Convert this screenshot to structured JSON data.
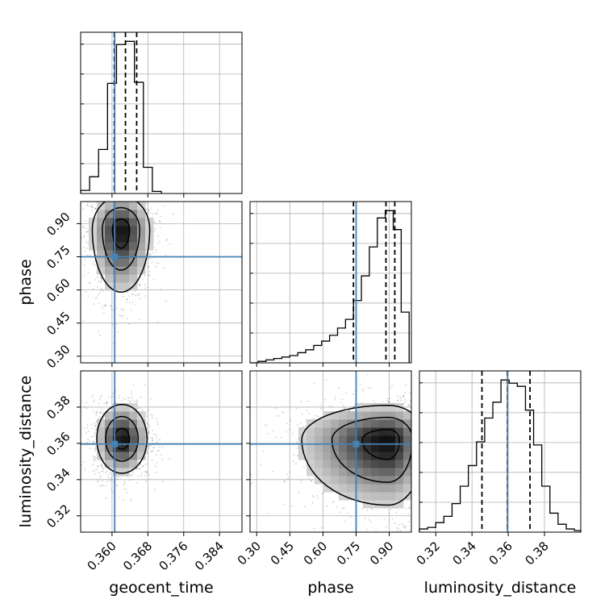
{
  "chart_data": {
    "type": "corner",
    "parameters": [
      {
        "key": "geocent_time",
        "label": "geocent_time",
        "range": [
          0.353,
          0.389
        ],
        "ticks": [
          "0.360",
          "0.368",
          "0.376",
          "0.384"
        ],
        "tick_values": [
          0.36,
          0.368,
          0.376,
          0.384
        ]
      },
      {
        "key": "phase",
        "label": "phase",
        "range": [
          0.27,
          1.0
        ],
        "ticks": [
          "0.30",
          "0.45",
          "0.60",
          "0.75",
          "0.90"
        ],
        "tick_values": [
          0.3,
          0.45,
          0.6,
          0.75,
          0.9
        ]
      },
      {
        "key": "luminosity_distance",
        "label": "luminosity_distance",
        "range": [
          0.311,
          0.4
        ],
        "ticks": [
          "0.32",
          "0.34",
          "0.36",
          "0.38"
        ],
        "tick_values": [
          0.32,
          0.34,
          0.36,
          0.38
        ]
      }
    ],
    "truths": {
      "geocent_time": 0.3606,
      "phase": 0.75,
      "luminosity_distance": 0.3596
    },
    "colors": {
      "truth": "#4682b4",
      "hist": "#000000",
      "grid": "#b0b0b0"
    },
    "grid": true,
    "histograms": [
      {
        "param": "geocent_time",
        "edges": [
          0.353,
          0.355,
          0.357,
          0.359,
          0.361,
          0.363,
          0.365,
          0.367,
          0.369,
          0.371
        ],
        "counts": [
          0.03,
          0.16,
          0.42,
          1.05,
          1.42,
          1.45,
          1.06,
          0.25,
          0.02
        ],
        "quantiles": [
          0.3605,
          0.363,
          0.3655
        ]
      },
      {
        "param": "phase",
        "edges": [
          0.27,
          0.306,
          0.342,
          0.378,
          0.414,
          0.45,
          0.486,
          0.522,
          0.558,
          0.594,
          0.63,
          0.666,
          0.702,
          0.738,
          0.774,
          0.81,
          0.846,
          0.882,
          0.918,
          0.954,
          0.99
        ],
        "counts": [
          0.0,
          0.01,
          0.02,
          0.03,
          0.04,
          0.05,
          0.07,
          0.09,
          0.12,
          0.15,
          0.19,
          0.24,
          0.3,
          0.43,
          0.6,
          0.8,
          1.0,
          1.05,
          0.92,
          0.35
        ],
        "quantiles": [
          0.738,
          0.885,
          0.925
        ]
      },
      {
        "param": "luminosity_distance",
        "edges": [
          0.311,
          0.3155,
          0.32,
          0.3245,
          0.329,
          0.3335,
          0.338,
          0.3425,
          0.347,
          0.3515,
          0.356,
          0.3605,
          0.365,
          0.3695,
          0.374,
          0.3785,
          0.383,
          0.3875,
          0.392,
          0.3965,
          0.401
        ],
        "counts": [
          0.02,
          0.03,
          0.06,
          0.1,
          0.18,
          0.29,
          0.42,
          0.57,
          0.72,
          0.82,
          0.96,
          0.94,
          0.92,
          0.77,
          0.55,
          0.29,
          0.12,
          0.05,
          0.02,
          0.01
        ],
        "quantiles": [
          0.3455,
          0.3595,
          0.372
        ]
      }
    ],
    "joint": [
      {
        "x": "geocent_time",
        "y": "phase",
        "center": [
          0.362,
          0.875
        ],
        "spread": [
          0.0032,
          0.075
        ],
        "skew": "tail-low"
      },
      {
        "x": "geocent_time",
        "y": "luminosity_distance",
        "center": [
          0.3622,
          0.3625
        ],
        "spread": [
          0.0028,
          0.0095
        ],
        "skew": "none"
      },
      {
        "x": "phase",
        "y": "luminosity_distance",
        "center": [
          0.895,
          0.362
        ],
        "spread": [
          0.085,
          0.0095
        ],
        "skew": "tail-low"
      }
    ]
  }
}
